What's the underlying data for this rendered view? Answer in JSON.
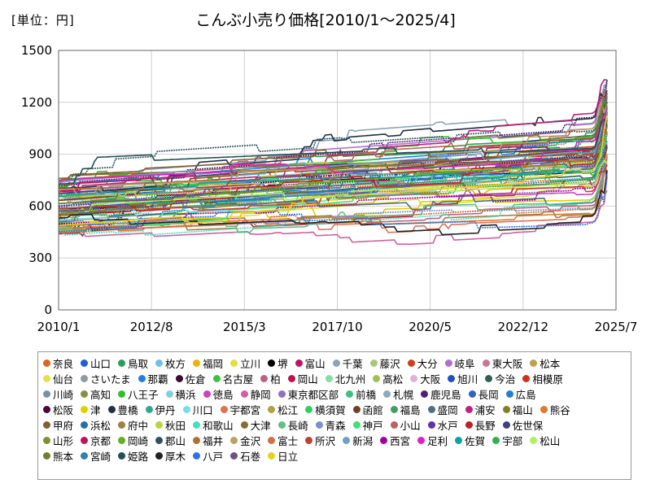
{
  "chart_data": {
    "type": "line",
    "title": "こんぶ小売り価格[2010/1～2025/4]",
    "unit_label": "[単位：円]",
    "xlabel": "",
    "ylabel": "",
    "ylim": [
      0,
      1500
    ],
    "y_ticks": [
      0,
      300,
      600,
      900,
      1200,
      1500
    ],
    "xlim": [
      2010.0,
      2025.5
    ],
    "x_ticks": [
      {
        "value": 2010.0,
        "label": "2010/1"
      },
      {
        "value": 2012.583,
        "label": "2012/8"
      },
      {
        "value": 2015.167,
        "label": "2015/3"
      },
      {
        "value": 2017.75,
        "label": "2017/10"
      },
      {
        "value": 2020.333,
        "label": "2020/5"
      },
      {
        "value": 2022.917,
        "label": "2022/12"
      },
      {
        "value": 2025.5,
        "label": "2025/7"
      }
    ],
    "grid": true,
    "legend_position": "bottom",
    "legend_rows": [
      [
        "奈良",
        "山口",
        "鳥取",
        "枚方",
        "福岡",
        "立川",
        "堺",
        "富山",
        "千葉",
        "藤沢",
        "大分",
        "岐阜",
        "東大阪",
        "松本"
      ],
      [
        "仙台",
        "さいたま",
        "那覇",
        "佐倉",
        "名古屋",
        "柏",
        "岡山",
        "北九州",
        "高松",
        "大阪",
        "旭川",
        "今治",
        "相模原"
      ],
      [
        "川崎",
        "高知",
        "八王子",
        "横浜",
        "徳島",
        "静岡",
        "東京都区部",
        "前橋",
        "札幌",
        "鹿児島",
        "長岡",
        "広島"
      ],
      [
        "松阪",
        "津",
        "豊橋",
        "伊丹",
        "川口",
        "宇都宮",
        "松江",
        "横須賀",
        "函館",
        "福島",
        "盛岡",
        "浦安",
        "福山",
        "熊谷"
      ],
      [
        "甲府",
        "浜松",
        "府中",
        "秋田",
        "和歌山",
        "大津",
        "長崎",
        "青森",
        "神戸",
        "小山",
        "水戸",
        "長野",
        "佐世保"
      ],
      [
        "山形",
        "京都",
        "岡崎",
        "郡山",
        "福井",
        "金沢",
        "富士",
        "所沢",
        "新潟",
        "西宮",
        "足利",
        "佐賀",
        "宇部",
        "松山"
      ],
      [
        "熊本",
        "宮崎",
        "姫路",
        "厚木",
        "八戸",
        "石巻",
        "日立"
      ]
    ],
    "legend_colors": [
      [
        "#e8601c",
        "#1f5fd6",
        "#2a9d5c",
        "#6fc0e8",
        "#f0b400",
        "#e0e040",
        "#000000",
        "#c0106a",
        "#8fa3b8",
        "#a8c878",
        "#d04020",
        "#b070d0",
        "#c87890",
        "#c0a050"
      ],
      [
        "#e8e048",
        "#9098a8",
        "#2080e0",
        "#3a0a30",
        "#40c040",
        "#c06080",
        "#c01050",
        "#80e0a0",
        "#a0c050",
        "#e0b0d8",
        "#2050c0",
        "#2f6050",
        "#d03018"
      ],
      [
        "#7890a8",
        "#889040",
        "#30c030",
        "#80d0e0",
        "#d040c0",
        "#d060a0",
        "#9070c0",
        "#40c080",
        "#90a8c0",
        "#502070",
        "#3060d0",
        "#2080d0"
      ],
      [
        "#500040",
        "#e0d000",
        "#203040",
        "#30a890",
        "#70e0f0",
        "#e07050",
        "#b0a040",
        "#30d060",
        "#704020",
        "#40a060",
        "#507080",
        "#c0207a",
        "#808020",
        "#e07830"
      ],
      [
        "#806030",
        "#2070b0",
        "#a08040",
        "#c0d040",
        "#40e0c0",
        "#807030",
        "#60c080",
        "#8090c8",
        "#40e070",
        "#c06060",
        "#6030b0",
        "#c02020",
        "#404080"
      ],
      [
        "#809030",
        "#c01060",
        "#60b020",
        "#305060",
        "#b07030",
        "#c0a060",
        "#d07040",
        "#c04030",
        "#70a0c0",
        "#a000a0",
        "#e020c0",
        "#10a0a0",
        "#30b050",
        "#b0f060"
      ],
      [
        "#708030",
        "#3080b0",
        "#205050",
        "#202020",
        "#3070e0",
        "#705080",
        "#e8d020"
      ]
    ]
  }
}
